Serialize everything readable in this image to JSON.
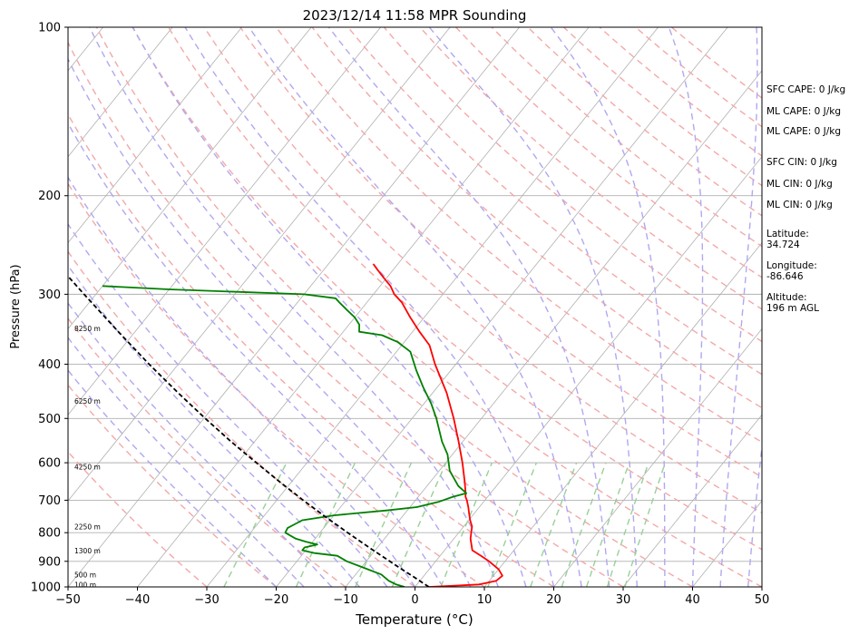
{
  "chart_data": {
    "type": "line",
    "subtype": "skew-t log-p sounding",
    "title": "2023/12/14 11:58 MPR Sounding",
    "xlabel": "Temperature (°C)",
    "ylabel": "Pressure (hPa)",
    "xlim": [
      -50,
      50
    ],
    "ylim": [
      1000,
      100
    ],
    "y_scale": "log",
    "x_ticks": [
      "−50",
      "−40",
      "−30",
      "−20",
      "−10",
      "0",
      "10",
      "20",
      "30",
      "40",
      "50"
    ],
    "y_ticks": [
      "1000",
      "900",
      "800",
      "700",
      "600",
      "500",
      "400",
      "300",
      "200",
      "100"
    ],
    "height_labels": [
      {
        "pressure": 990,
        "text": "100 m"
      },
      {
        "pressure": 950,
        "text": "500 m"
      },
      {
        "pressure": 862,
        "text": "1300 m"
      },
      {
        "pressure": 780,
        "text": "2250 m"
      },
      {
        "pressure": 610,
        "text": "4250 m"
      },
      {
        "pressure": 465,
        "text": "6250 m"
      },
      {
        "pressure": 345,
        "text": "8250 m"
      }
    ],
    "series": [
      {
        "role": "temperature",
        "color": "#ff0000",
        "points": [
          [
            1000,
            2.0
          ],
          [
            990,
            9.0
          ],
          [
            975,
            11.0
          ],
          [
            955,
            11.3
          ],
          [
            930,
            10.0
          ],
          [
            900,
            7.7
          ],
          [
            880,
            5.9
          ],
          [
            860,
            4.0
          ],
          [
            840,
            3.2
          ],
          [
            820,
            2.4
          ],
          [
            800,
            1.8
          ],
          [
            780,
            1.2
          ],
          [
            760,
            0.2
          ],
          [
            740,
            -0.7
          ],
          [
            720,
            -1.6
          ],
          [
            700,
            -2.6
          ],
          [
            690,
            -3.2
          ],
          [
            680,
            -3.6
          ],
          [
            650,
            -5.0
          ],
          [
            600,
            -7.6
          ],
          [
            550,
            -10.6
          ],
          [
            500,
            -14.0
          ],
          [
            450,
            -18.0
          ],
          [
            400,
            -23.0
          ],
          [
            370,
            -26.0
          ],
          [
            350,
            -29.0
          ],
          [
            330,
            -32.0
          ],
          [
            310,
            -35.0
          ],
          [
            300,
            -37.0
          ],
          [
            290,
            -38.5
          ],
          [
            280,
            -40.5
          ],
          [
            270,
            -42.5
          ],
          [
            265,
            -43.5
          ]
        ]
      },
      {
        "role": "dewpoint",
        "color": "#008000",
        "points": [
          [
            1000,
            -1.5
          ],
          [
            990,
            -3.0
          ],
          [
            975,
            -4.5
          ],
          [
            950,
            -6.3
          ],
          [
            925,
            -9.5
          ],
          [
            900,
            -12.8
          ],
          [
            880,
            -14.8
          ],
          [
            870,
            -18.4
          ],
          [
            860,
            -20.5
          ],
          [
            850,
            -20.5
          ],
          [
            840,
            -19.0
          ],
          [
            830,
            -21.0
          ],
          [
            820,
            -22.8
          ],
          [
            800,
            -25.0
          ],
          [
            785,
            -25.2
          ],
          [
            770,
            -24.5
          ],
          [
            760,
            -24.0
          ],
          [
            745,
            -20.0
          ],
          [
            730,
            -13.0
          ],
          [
            720,
            -9.0
          ],
          [
            705,
            -6.5
          ],
          [
            690,
            -5.0
          ],
          [
            680,
            -3.5
          ],
          [
            660,
            -5.5
          ],
          [
            620,
            -8.5
          ],
          [
            580,
            -10.7
          ],
          [
            550,
            -13.0
          ],
          [
            500,
            -16.5
          ],
          [
            470,
            -19.0
          ],
          [
            440,
            -22.0
          ],
          [
            410,
            -25.0
          ],
          [
            380,
            -28.0
          ],
          [
            365,
            -31.0
          ],
          [
            355,
            -34.0
          ],
          [
            350,
            -37.7
          ],
          [
            340,
            -38.5
          ],
          [
            330,
            -40.0
          ],
          [
            320,
            -42.0
          ],
          [
            310,
            -44.0
          ],
          [
            305,
            -45.0
          ],
          [
            300,
            -50.0
          ],
          [
            297,
            -60.0
          ],
          [
            294,
            -70.0
          ],
          [
            290,
            -80.0
          ]
        ]
      },
      {
        "role": "parcel",
        "color": "#000000",
        "points": [
          [
            1000,
            2.0
          ],
          [
            960,
            -1.3
          ],
          [
            925,
            -4.4
          ],
          [
            900,
            -6.6
          ],
          [
            850,
            -11.2
          ],
          [
            800,
            -16.0
          ],
          [
            750,
            -21.0
          ],
          [
            700,
            -26.2
          ],
          [
            650,
            -31.6
          ],
          [
            600,
            -37.3
          ],
          [
            550,
            -43.4
          ],
          [
            500,
            -49.8
          ],
          [
            450,
            -56.7
          ],
          [
            400,
            -64.2
          ],
          [
            350,
            -72.4
          ],
          [
            300,
            -81.7
          ],
          [
            280,
            -85.8
          ]
        ]
      }
    ]
  },
  "side_panel": {
    "sfc_cape": "SFC CAPE: 0 J/kg",
    "ml_cape_1": "ML CAPE: 0 J/kg",
    "ml_cape_2": "ML CAPE: 0 J/kg",
    "sfc_cin": "SFC CIN: 0 J/kg",
    "ml_cin_1": "ML CIN: 0 J/kg",
    "ml_cin_2": "ML CIN: 0 J/kg",
    "latitude_label": "Latitude:",
    "latitude_value": "34.724",
    "longitude_label": "Longitude:",
    "longitude_value": "-86.646",
    "altitude_label": "Altitude:",
    "altitude_value": "196 m AGL"
  },
  "colors": {
    "isotherm": "#b0b0b0",
    "isobar": "#b0b0b0",
    "dry_adiabat": "#f4a8a8",
    "moist_adiabat": "#b0a8f0",
    "mixing_ratio": "#98d098"
  }
}
